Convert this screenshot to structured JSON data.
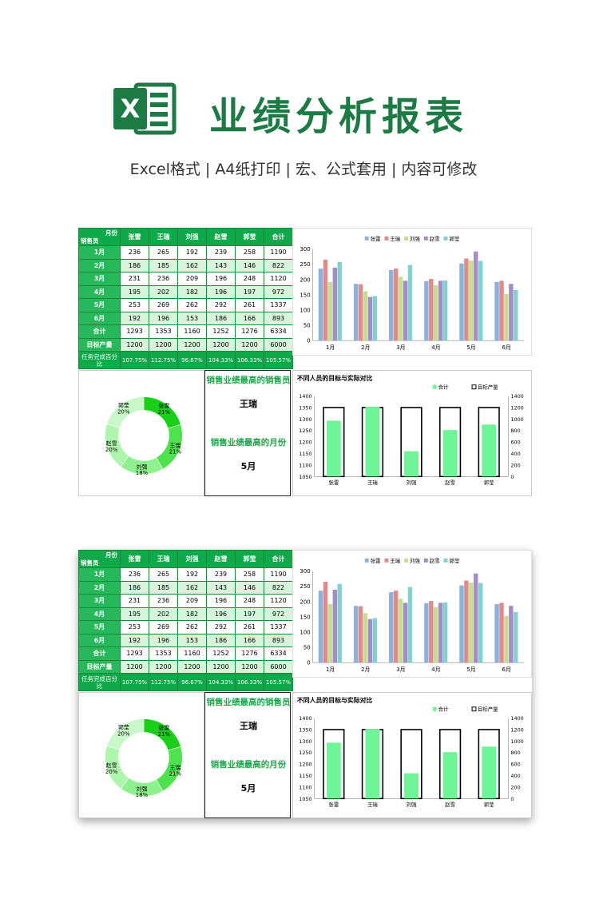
{
  "header": {
    "title": "业绩分析报表",
    "subtitle": "Excel格式 |  A4纸打印 | 宏、公式套用 | 内容可修改",
    "logo_letter": "X",
    "icon": "excel-icon",
    "brand_color": "#1e7a45"
  },
  "table": {
    "corner_top": "月份",
    "corner_bottom": "销售员",
    "columns": [
      "张雷",
      "王瑞",
      "刘强",
      "赵雪",
      "郭莹",
      "合计"
    ],
    "rows": [
      {
        "label": "1月",
        "values": [
          "236",
          "265",
          "192",
          "239",
          "258",
          "1190"
        ]
      },
      {
        "label": "2月",
        "values": [
          "186",
          "185",
          "162",
          "143",
          "146",
          "822"
        ]
      },
      {
        "label": "3月",
        "values": [
          "231",
          "236",
          "209",
          "196",
          "248",
          "1120"
        ]
      },
      {
        "label": "4月",
        "values": [
          "195",
          "202",
          "182",
          "196",
          "197",
          "972"
        ]
      },
      {
        "label": "5月",
        "values": [
          "253",
          "269",
          "262",
          "292",
          "261",
          "1337"
        ]
      },
      {
        "label": "6月",
        "values": [
          "192",
          "196",
          "153",
          "186",
          "166",
          "893"
        ]
      },
      {
        "label": "合计",
        "values": [
          "1293",
          "1353",
          "1160",
          "1252",
          "1276",
          "6334"
        ]
      },
      {
        "label": "目标产量",
        "values": [
          "1200",
          "1200",
          "1200",
          "1200",
          "1200",
          "6000"
        ]
      }
    ],
    "rate_label": "任务完成百分比",
    "rate_values": [
      "107.75%",
      "112.75%",
      "96.67%",
      "104.33%",
      "106.33%",
      "105.57%"
    ]
  },
  "kpi": {
    "top_label": "销售业绩最高的销售员",
    "top_value": "王瑞",
    "month_label": "销售业绩最高的月份",
    "month_value": "5月"
  },
  "chart_data": [
    {
      "type": "bar",
      "categories": [
        "1月",
        "2月",
        "3月",
        "4月",
        "5月",
        "6月"
      ],
      "series": [
        {
          "name": "张雷",
          "values": [
            236,
            186,
            231,
            195,
            253,
            192
          ],
          "color": "#8fb0dd"
        },
        {
          "name": "王瑞",
          "values": [
            265,
            185,
            236,
            202,
            269,
            196
          ],
          "color": "#e08a8a"
        },
        {
          "name": "刘强",
          "values": [
            192,
            162,
            209,
            182,
            262,
            153
          ],
          "color": "#c6dc8e"
        },
        {
          "name": "赵雪",
          "values": [
            239,
            143,
            196,
            196,
            292,
            186
          ],
          "color": "#a48cc8"
        },
        {
          "name": "郭莹",
          "values": [
            258,
            146,
            248,
            197,
            261,
            166
          ],
          "color": "#7fd3cf"
        }
      ],
      "ylim": [
        0,
        300
      ],
      "yticks": [
        "0",
        "50",
        "100",
        "150",
        "200",
        "250",
        "300"
      ],
      "legend": "top",
      "grid": false
    },
    {
      "type": "pie",
      "donut": true,
      "labels": [
        "张雷",
        "王瑞",
        "刘强",
        "赵雪",
        "郭莹"
      ],
      "values": [
        1293,
        1353,
        1160,
        1252,
        1276
      ],
      "percent_labels": [
        "21%",
        "21%",
        "18%",
        "20%",
        "20%"
      ],
      "colors": [
        "#18d018",
        "#4ee34e",
        "#8ff08f",
        "#aef5ae",
        "#c9f9c9"
      ]
    },
    {
      "type": "bar",
      "title": "不同人员的目标与实际对比",
      "categories": [
        "张雷",
        "王瑞",
        "刘强",
        "赵雪",
        "郭莹"
      ],
      "series": [
        {
          "name": "合计",
          "values": [
            1293,
            1353,
            1160,
            1252,
            1276
          ],
          "color": "#6ef597",
          "axis": "left"
        },
        {
          "name": "目标产量",
          "values": [
            1200,
            1200,
            1200,
            1200,
            1200
          ],
          "color": "#000000",
          "axis": "right"
        }
      ],
      "ylim": [
        1050,
        1400
      ],
      "y2lim": [
        0,
        1400
      ],
      "yticks": [
        "1050",
        "1100",
        "1150",
        "1200",
        "1250",
        "1300",
        "1350",
        "1400"
      ],
      "y2ticks": [
        "0",
        "200",
        "400",
        "600",
        "800",
        "1000",
        "1200",
        "1400"
      ],
      "legend": "top-right"
    }
  ]
}
